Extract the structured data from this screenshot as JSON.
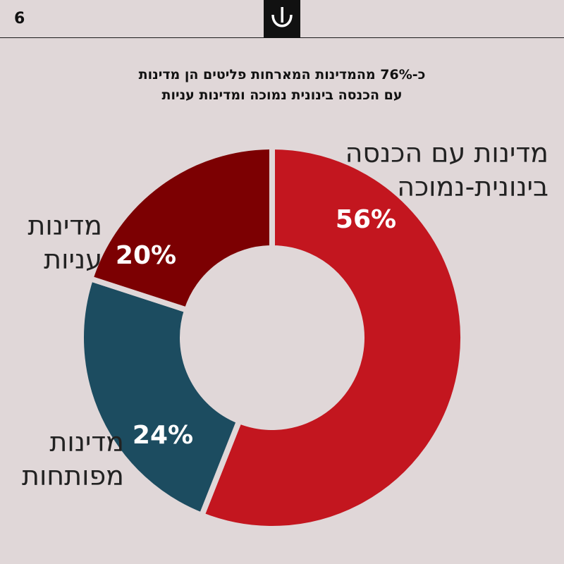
{
  "page": {
    "number": "6",
    "title_lines": [
      "כ-76% מהמדינות המארחות פליטים הן מדינות",
      "עם הכנסה בינונית נמוכה ומדינות עניות"
    ]
  },
  "chart_data": {
    "type": "pie",
    "variant": "donut",
    "title": "כ-76% מהמדינות המארחות פליטים הן מדינות עם הכנסה בינונית נמוכה ומדינות עניות",
    "slices": [
      {
        "label_lines": [
          "מדינות עם הכנסה",
          "בינונית-נמוכה"
        ],
        "value": 56,
        "value_label": "56%",
        "color": "#c3161f"
      },
      {
        "label_lines": [
          "מדינות",
          "מפותחות"
        ],
        "value": 24,
        "value_label": "24%",
        "color": "#1c4c60"
      },
      {
        "label_lines": [
          "מדינות",
          "עניות"
        ],
        "value": 20,
        "value_label": "20%",
        "color": "#7c0002"
      }
    ],
    "start_angle_deg": 0,
    "direction": "clockwise",
    "separator_color": "#e0d7d8",
    "legend": "none"
  }
}
